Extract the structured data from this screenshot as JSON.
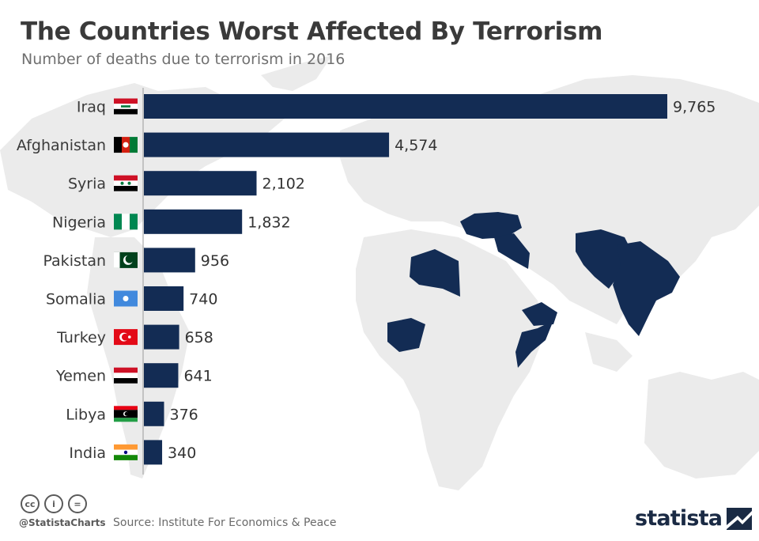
{
  "header": {
    "title": "The Countries Worst Affected By Terrorism",
    "subtitle": "Number of deaths due to terrorism in 2016"
  },
  "chart_data": {
    "type": "bar",
    "orientation": "horizontal",
    "title": "The Countries Worst Affected By Terrorism",
    "subtitle": "Number of deaths due to terrorism in 2016",
    "categories": [
      "Iraq",
      "Afghanistan",
      "Syria",
      "Nigeria",
      "Pakistan",
      "Somalia",
      "Turkey",
      "Yemen",
      "Libya",
      "India"
    ],
    "values": [
      9765,
      4574,
      2102,
      1832,
      956,
      740,
      658,
      641,
      376,
      340
    ],
    "value_labels": [
      "9,765",
      "4,574",
      "2,102",
      "1,832",
      "956",
      "740",
      "658",
      "641",
      "376",
      "340"
    ],
    "flags": [
      "iraq-flag-icon",
      "afghanistan-flag-icon",
      "syria-flag-icon",
      "nigeria-flag-icon",
      "pakistan-flag-icon",
      "somalia-flag-icon",
      "turkey-flag-icon",
      "yemen-flag-icon",
      "libya-flag-icon",
      "india-flag-icon"
    ],
    "xlim": [
      0,
      9765
    ],
    "grid": false,
    "legend": "none",
    "bar_color": "#132c54"
  },
  "colors": {
    "bar": "#132c54",
    "highlight_countries": "#132c54",
    "map": "#ececec",
    "value_text": "#333333",
    "label_text": "#3a3a3a"
  },
  "footer": {
    "license_icons": [
      "cc-icon",
      "by-icon",
      "nd-icon"
    ],
    "license_glyphs": [
      "cc",
      "i",
      "="
    ],
    "handle": "@StatistaCharts",
    "source": "Source: Institute For Economics & Peace",
    "brand": "statista"
  }
}
